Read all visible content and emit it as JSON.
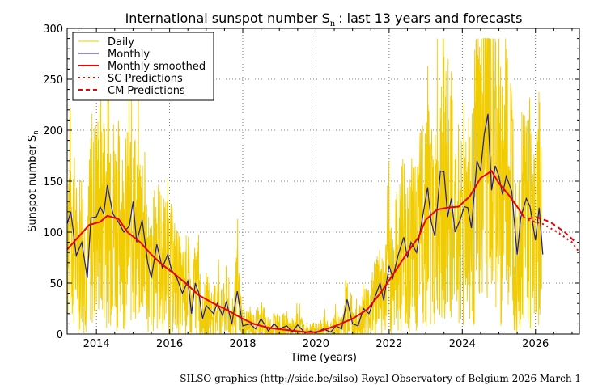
{
  "chart_data": {
    "type": "line",
    "title": "International sunspot number S",
    "title_subscript": "n",
    "title_suffix": ": last 13 years and forecasts",
    "xlabel": "Time (years)",
    "ylabel": "Sunspot number S",
    "ylabel_subscript": "n",
    "xlim": [
      2013.2,
      2027.2
    ],
    "ylim": [
      0,
      300
    ],
    "xticks": [
      2014,
      2016,
      2018,
      2020,
      2022,
      2024,
      2026
    ],
    "yticks": [
      0,
      50,
      100,
      150,
      200,
      250,
      300
    ],
    "grid": true,
    "legend_position": "top-left",
    "colors": {
      "daily": "#f0cc00",
      "monthly": "#1a1aa0",
      "smoothed": "#ee0000",
      "predictions": "#ee0000"
    },
    "series": [
      {
        "name": "Daily",
        "style": "solid-thin",
        "note": "daily values fluctuate widely around monthly means; peak approx 290 in 2024.7"
      },
      {
        "name": "Monthly",
        "x": [
          2013.2,
          2013.3,
          2013.45,
          2013.6,
          2013.75,
          2013.85,
          2014.0,
          2014.1,
          2014.2,
          2014.3,
          2014.45,
          2014.6,
          2014.75,
          2014.9,
          2015.0,
          2015.1,
          2015.25,
          2015.4,
          2015.5,
          2015.65,
          2015.8,
          2015.95,
          2016.05,
          2016.2,
          2016.35,
          2016.5,
          2016.6,
          2016.7,
          2016.8,
          2016.9,
          2017.0,
          2017.2,
          2017.3,
          2017.45,
          2017.55,
          2017.7,
          2017.85,
          2018.0,
          2018.2,
          2018.35,
          2018.5,
          2018.7,
          2018.85,
          2019.0,
          2019.2,
          2019.35,
          2019.5,
          2019.7,
          2019.85,
          2020.0,
          2020.2,
          2020.4,
          2020.55,
          2020.7,
          2020.85,
          2021.0,
          2021.15,
          2021.3,
          2021.45,
          2021.6,
          2021.75,
          2021.85,
          2022.0,
          2022.1,
          2022.25,
          2022.4,
          2022.5,
          2022.6,
          2022.75,
          2022.9,
          2023.05,
          2023.15,
          2023.25,
          2023.4,
          2023.5,
          2023.6,
          2023.7,
          2023.8,
          2023.95,
          2024.05,
          2024.15,
          2024.25,
          2024.4,
          2024.5,
          2024.6,
          2024.7,
          2024.8,
          2024.9,
          2025.0,
          2025.1,
          2025.2,
          2025.35,
          2025.5,
          2025.6,
          2025.75,
          2025.85,
          2026.0,
          2026.1,
          2026.2
        ],
        "values": [
          108,
          120,
          77,
          90,
          55,
          114,
          115,
          125,
          118,
          146,
          118,
          110,
          100,
          106,
          130,
          90,
          112,
          70,
          55,
          88,
          65,
          78,
          63,
          55,
          40,
          52,
          20,
          50,
          40,
          15,
          28,
          20,
          30,
          18,
          32,
          10,
          42,
          8,
          10,
          5,
          15,
          3,
          10,
          5,
          8,
          2,
          9,
          1,
          3,
          1,
          5,
          2,
          8,
          5,
          34,
          10,
          8,
          25,
          20,
          35,
          50,
          33,
          67,
          55,
          78,
          95,
          75,
          90,
          80,
          112,
          144,
          110,
          96,
          160,
          159,
          115,
          133,
          100,
          113,
          125,
          124,
          104,
          170,
          160,
          196,
          216,
          141,
          165,
          155,
          137,
          155,
          140,
          78,
          115,
          133,
          125,
          92,
          124,
          78
        ]
      },
      {
        "name": "Monthly smoothed",
        "x": [
          2013.2,
          2013.5,
          2013.8,
          2014.1,
          2014.3,
          2014.6,
          2014.85,
          2015.2,
          2015.5,
          2015.8,
          2016.1,
          2016.5,
          2016.8,
          2017.2,
          2017.6,
          2018.0,
          2018.3,
          2018.7,
          2019.2,
          2019.7,
          2020.0,
          2020.3,
          2020.6,
          2021.0,
          2021.4,
          2021.8,
          2022.1,
          2022.5,
          2022.8,
          2023.0,
          2023.3,
          2023.6,
          2023.9,
          2024.2,
          2024.5,
          2024.8,
          2025.0,
          2025.3,
          2025.5,
          2025.7
        ],
        "values": [
          83,
          95,
          107,
          110,
          116,
          113,
          100,
          90,
          78,
          68,
          60,
          48,
          38,
          30,
          23,
          15,
          10,
          6,
          4,
          2,
          1.8,
          5,
          9,
          15,
          24,
          42,
          58,
          80,
          95,
          112,
          122,
          124,
          125,
          135,
          153,
          160,
          148,
          135,
          125,
          114
        ]
      },
      {
        "name": "SC Predictions",
        "x": [
          2025.8,
          2026.2,
          2026.6,
          2027.0,
          2027.2
        ],
        "values": [
          112,
          108,
          100,
          90,
          80
        ]
      },
      {
        "name": "CM Predictions",
        "x": [
          2025.8,
          2026.0,
          2026.4,
          2026.8,
          2027.1
        ],
        "values": [
          113,
          115,
          110,
          100,
          90
        ]
      }
    ]
  },
  "footer": "SILSO graphics (http://sidc.be/silso)  Royal Observatory of Belgium  2026 March 1"
}
